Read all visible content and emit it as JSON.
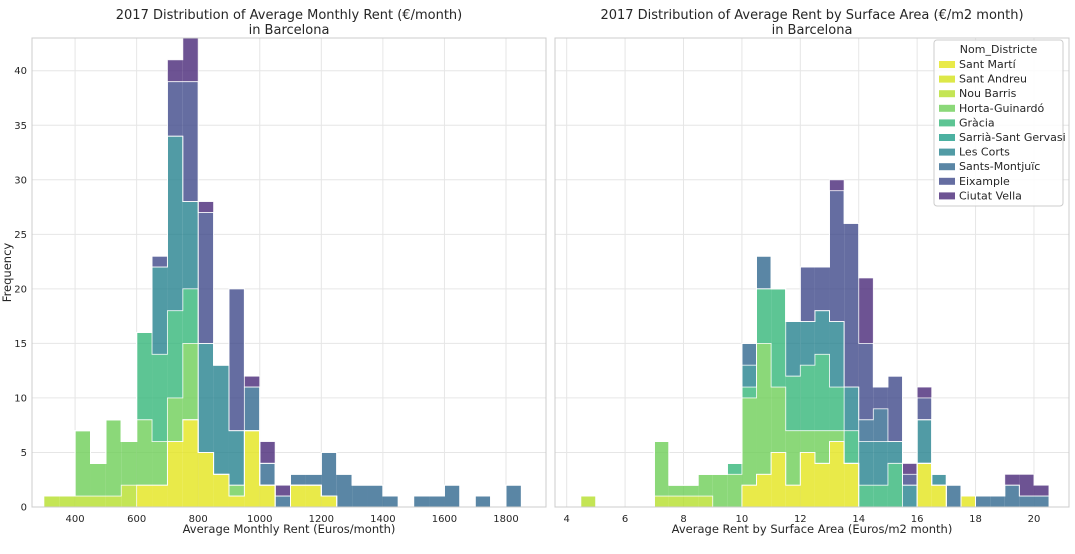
{
  "colors": {
    "Ciutat Vella": "#482878",
    "Eixample": "#3e4989",
    "Sants-Montjuïc": "#31688e",
    "Les Corts": "#26828e",
    "Sarrià-Sant Gervasi": "#1f9e89",
    "Gràcia": "#35b779",
    "Horta-Guinardó": "#6ece58",
    "Nou Barris": "#b5de2b",
    "Sant Andreu": "#d5e21a",
    "Sant Martí": "#e4e51b"
  },
  "chart_data": [
    {
      "type": "histogram",
      "stacking": "stacked-step",
      "title": "2017 Distribution of Average Monthly Rent (€/month)\nin Barcelona",
      "xlabel": "Average Monthly Rent (Euros/month)",
      "ylabel": "Frequency",
      "xlim": [
        260,
        1930
      ],
      "ylim": [
        0,
        43
      ],
      "xticks": [
        400,
        600,
        800,
        1000,
        1200,
        1400,
        1600,
        1800
      ],
      "yticks": [
        0,
        5,
        10,
        15,
        20,
        25,
        30,
        35,
        40
      ],
      "grid": true,
      "bin_edges": [
        300,
        350,
        400,
        450,
        500,
        550,
        600,
        650,
        700,
        750,
        800,
        850,
        900,
        950,
        1000,
        1050,
        1100,
        1150,
        1200,
        1250,
        1300,
        1350,
        1400,
        1450,
        1500,
        1550,
        1600,
        1650,
        1700,
        1750,
        1800,
        1850,
        1900
      ],
      "series": [
        {
          "name": "Sant Martí",
          "values": [
            0,
            0,
            0,
            0,
            0,
            0,
            2,
            2,
            6,
            8,
            5,
            3,
            1,
            7,
            2,
            0,
            2,
            2,
            1,
            0,
            0,
            0,
            0,
            0,
            0,
            0,
            0,
            0,
            0,
            0,
            0,
            0
          ]
        },
        {
          "name": "Sant Andreu",
          "values": [
            0,
            0,
            0,
            0,
            0,
            0,
            0,
            0,
            0,
            0,
            0,
            0,
            0,
            0,
            0,
            0,
            0,
            0,
            0,
            0,
            0,
            0,
            0,
            0,
            0,
            0,
            0,
            0,
            0,
            0,
            0,
            0
          ]
        },
        {
          "name": "Nou Barris",
          "values": [
            1,
            1,
            1,
            1,
            1,
            2,
            0,
            0,
            0,
            0,
            0,
            0,
            0,
            0,
            0,
            0,
            0,
            0,
            0,
            0,
            0,
            0,
            0,
            0,
            0,
            0,
            0,
            0,
            0,
            0,
            0,
            0
          ]
        },
        {
          "name": "Horta-Guinardó",
          "values": [
            0,
            0,
            6,
            3,
            7,
            4,
            6,
            4,
            4,
            7,
            0,
            0,
            1,
            0,
            0,
            0,
            0,
            0,
            0,
            0,
            0,
            0,
            0,
            0,
            0,
            0,
            0,
            0,
            0,
            0,
            0,
            0
          ]
        },
        {
          "name": "Gràcia",
          "values": [
            0,
            0,
            0,
            0,
            0,
            0,
            8,
            8,
            8,
            5,
            0,
            0,
            0,
            0,
            0,
            0,
            0,
            0,
            0,
            0,
            0,
            0,
            0,
            0,
            0,
            0,
            0,
            0,
            0,
            0,
            0,
            0
          ]
        },
        {
          "name": "Sarrià-Sant Gervasi",
          "values": [
            0,
            0,
            0,
            0,
            0,
            0,
            0,
            0,
            0,
            0,
            0,
            0,
            0,
            0,
            0,
            0,
            0,
            0,
            0,
            0,
            0,
            0,
            0,
            0,
            0,
            0,
            0,
            0,
            0,
            0,
            0,
            0
          ]
        },
        {
          "name": "Les Corts",
          "values": [
            0,
            0,
            0,
            0,
            0,
            0,
            0,
            8,
            16,
            8,
            10,
            10,
            5,
            0,
            0,
            0,
            0,
            0,
            0,
            0,
            0,
            0,
            0,
            0,
            0,
            0,
            0,
            0,
            0,
            0,
            0,
            0
          ]
        },
        {
          "name": "Sants-Montjuïc",
          "values": [
            0,
            0,
            0,
            0,
            0,
            0,
            0,
            0,
            0,
            0,
            0,
            0,
            0,
            4,
            2,
            1,
            1,
            1,
            4,
            3,
            2,
            2,
            1,
            0,
            1,
            1,
            2,
            0,
            1,
            0,
            2,
            0
          ]
        },
        {
          "name": "Eixample",
          "values": [
            0,
            0,
            0,
            0,
            0,
            0,
            0,
            1,
            5,
            11,
            12,
            0,
            13,
            0,
            0,
            0,
            0,
            0,
            0,
            0,
            0,
            0,
            0,
            0,
            0,
            0,
            0,
            0,
            0,
            0,
            0,
            0
          ]
        },
        {
          "name": "Ciutat Vella",
          "values": [
            0,
            0,
            0,
            0,
            0,
            0,
            0,
            0,
            2,
            4,
            1,
            0,
            0,
            1,
            2,
            1,
            0,
            0,
            0,
            0,
            0,
            0,
            0,
            0,
            0,
            0,
            0,
            0,
            0,
            0,
            0,
            0
          ]
        }
      ]
    },
    {
      "type": "histogram",
      "stacking": "stacked-step",
      "title": "2017 Distribution of Average Rent by Surface Area (€/m2 month)\nin Barcelona",
      "xlabel": "Average Rent by Surface Area (Euros/m2 month)",
      "ylabel": "",
      "xlim": [
        3.6,
        21.2
      ],
      "ylim": [
        0,
        43
      ],
      "xticks": [
        4,
        6,
        8,
        10,
        12,
        14,
        16,
        18,
        20
      ],
      "yticks": [
        0,
        5,
        10,
        15,
        20,
        25,
        30,
        35,
        40
      ],
      "grid": true,
      "legend": {
        "title": "Nom_Districte",
        "location": "top-right"
      },
      "bin_edges": [
        4.5,
        5,
        5.5,
        6,
        6.5,
        7,
        7.5,
        8,
        8.5,
        9,
        9.5,
        10,
        10.5,
        11,
        11.5,
        12,
        12.5,
        13,
        13.5,
        14,
        14.5,
        15,
        15.5,
        16,
        16.5,
        17,
        17.5,
        18,
        18.5,
        19,
        19.5,
        20,
        20.5
      ],
      "series": [
        {
          "name": "Sant Martí",
          "values": [
            0,
            0,
            0,
            0,
            0,
            0,
            0,
            0,
            0,
            0,
            0,
            2,
            3,
            5,
            2,
            5,
            4,
            6,
            4,
            0,
            0,
            0,
            0,
            4,
            2,
            0,
            1,
            0,
            0,
            0,
            0,
            0
          ]
        },
        {
          "name": "Sant Andreu",
          "values": [
            0,
            0,
            0,
            0,
            0,
            0,
            0,
            0,
            0,
            0,
            0,
            0,
            0,
            0,
            0,
            0,
            0,
            0,
            0,
            0,
            0,
            0,
            0,
            0,
            0,
            0,
            0,
            0,
            0,
            0,
            0,
            0
          ]
        },
        {
          "name": "Nou Barris",
          "values": [
            1,
            0,
            0,
            0,
            0,
            1,
            1,
            1,
            1,
            0,
            0,
            0,
            0,
            0,
            0,
            0,
            0,
            0,
            0,
            0,
            0,
            0,
            0,
            0,
            0,
            0,
            0,
            0,
            0,
            0,
            0,
            0
          ]
        },
        {
          "name": "Horta-Guinardó",
          "values": [
            0,
            0,
            0,
            0,
            0,
            5,
            1,
            1,
            2,
            3,
            3,
            8,
            12,
            6,
            5,
            2,
            3,
            1,
            0,
            0,
            0,
            0,
            0,
            0,
            0,
            0,
            0,
            0,
            0,
            0,
            0,
            0
          ]
        },
        {
          "name": "Gràcia",
          "values": [
            0,
            0,
            0,
            0,
            0,
            0,
            0,
            0,
            0,
            0,
            1,
            1,
            5,
            9,
            5,
            6,
            7,
            4,
            3,
            2,
            2,
            4,
            0,
            0,
            0,
            0,
            0,
            0,
            0,
            0,
            0,
            0
          ]
        },
        {
          "name": "Sarrià-Sant Gervasi",
          "values": [
            0,
            0,
            0,
            0,
            0,
            0,
            0,
            0,
            0,
            0,
            0,
            0,
            0,
            0,
            0,
            0,
            0,
            0,
            0,
            0,
            0,
            0,
            0,
            0,
            0,
            0,
            0,
            0,
            0,
            0,
            0,
            0
          ]
        },
        {
          "name": "Les Corts",
          "values": [
            0,
            0,
            0,
            0,
            0,
            0,
            0,
            0,
            0,
            0,
            0,
            2,
            0,
            0,
            5,
            4,
            4,
            6,
            4,
            4,
            4,
            2,
            2,
            4,
            1,
            0,
            0,
            0,
            0,
            0,
            0,
            0
          ]
        },
        {
          "name": "Sants-Montjuïc",
          "values": [
            0,
            0,
            0,
            0,
            0,
            0,
            0,
            0,
            0,
            0,
            0,
            2,
            3,
            0,
            0,
            0,
            0,
            0,
            0,
            2,
            3,
            0,
            0,
            0,
            0,
            2,
            0,
            1,
            1,
            2,
            1,
            1
          ]
        },
        {
          "name": "Eixample",
          "values": [
            0,
            0,
            0,
            0,
            0,
            0,
            0,
            0,
            0,
            0,
            0,
            0,
            0,
            0,
            0,
            5,
            4,
            12,
            15,
            7,
            2,
            6,
            1,
            2,
            0,
            0,
            0,
            0,
            0,
            0,
            0,
            0
          ]
        },
        {
          "name": "Ciutat Vella",
          "values": [
            0,
            0,
            0,
            0,
            0,
            0,
            0,
            0,
            0,
            0,
            0,
            0,
            0,
            0,
            0,
            0,
            0,
            1,
            0,
            6,
            0,
            0,
            1,
            1,
            0,
            0,
            0,
            0,
            0,
            1,
            2,
            1
          ]
        }
      ]
    }
  ]
}
